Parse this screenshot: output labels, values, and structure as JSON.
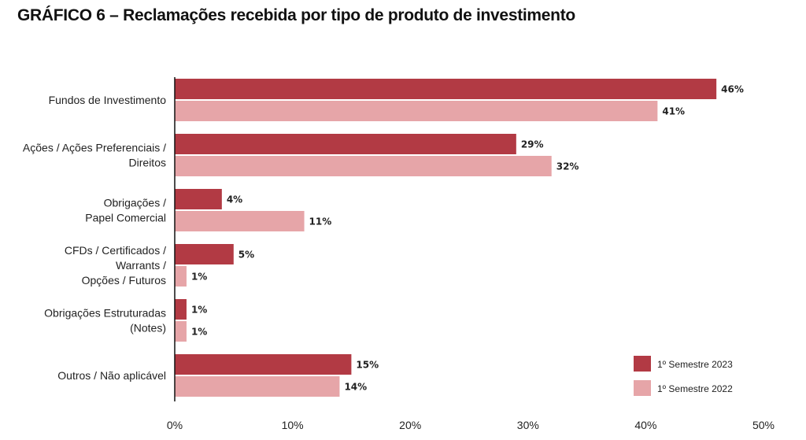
{
  "title": "GRÁFICO 6 – Reclamações recebida por tipo de produto de investimento",
  "chart_data": {
    "type": "bar",
    "orientation": "horizontal",
    "title": "GRÁFICO 6 – Reclamações recebida por tipo de produto de investimento",
    "categories": [
      [
        "Fundos de Investimento"
      ],
      [
        "Ações / Ações Preferenciais /",
        "Direitos"
      ],
      [
        "Obrigações /",
        "Papel Comercial"
      ],
      [
        "CFDs / Certificados /",
        "Warrants /",
        "Opções / Futuros"
      ],
      [
        "Obrigações Estruturadas",
        "(Notes)"
      ],
      [
        "Outros / Não aplicável"
      ]
    ],
    "series": [
      {
        "name": "1º Semestre 2023",
        "color": "#b23a44",
        "values": [
          46,
          29,
          4,
          5,
          1,
          15
        ],
        "labels": [
          "46%",
          "29%",
          "4%",
          "5%",
          "1%",
          "15%"
        ]
      },
      {
        "name": "1º Semestre 2022",
        "color": "#e6a5a8",
        "values": [
          41,
          32,
          11,
          1,
          1,
          14
        ],
        "labels": [
          "41%",
          "32%",
          "11%",
          "1%",
          "1%",
          "14%"
        ]
      }
    ],
    "xlim": [
      0,
      50
    ],
    "xticks": [
      "0%",
      "10%",
      "20%",
      "30%",
      "40%",
      "50%"
    ],
    "grid": false,
    "legend_position": "bottom-right"
  }
}
